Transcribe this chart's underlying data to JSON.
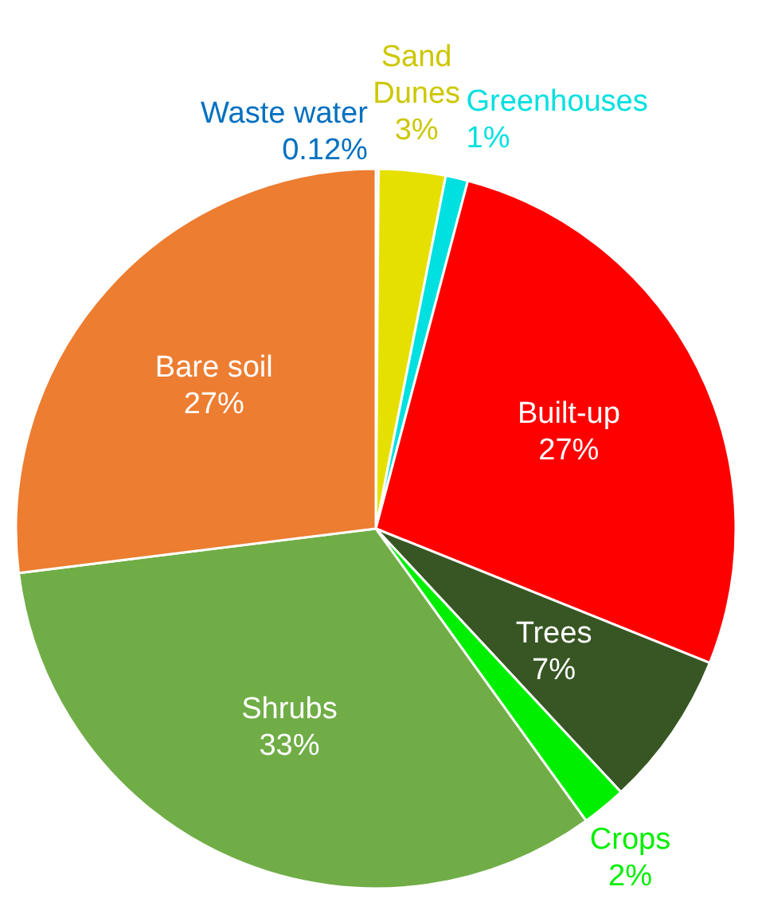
{
  "chart_data": {
    "type": "pie",
    "categories": [
      "Waste water",
      "Sand Dunes",
      "Greenhouses",
      "Built-up",
      "Trees",
      "Crops",
      "Shrubs",
      "Bare soil"
    ],
    "values": [
      0.12,
      3,
      1,
      27,
      7,
      2,
      33,
      27
    ],
    "value_labels": [
      "0.12%",
      "3%",
      "1%",
      "27%",
      "7%",
      "2%",
      "33%",
      "27%"
    ],
    "colors": [
      "#2e75b6",
      "#e6e000",
      "#00e0e0",
      "#ff0000",
      "#375623",
      "#00ee00",
      "#70ad47",
      "#ed7d31"
    ]
  }
}
